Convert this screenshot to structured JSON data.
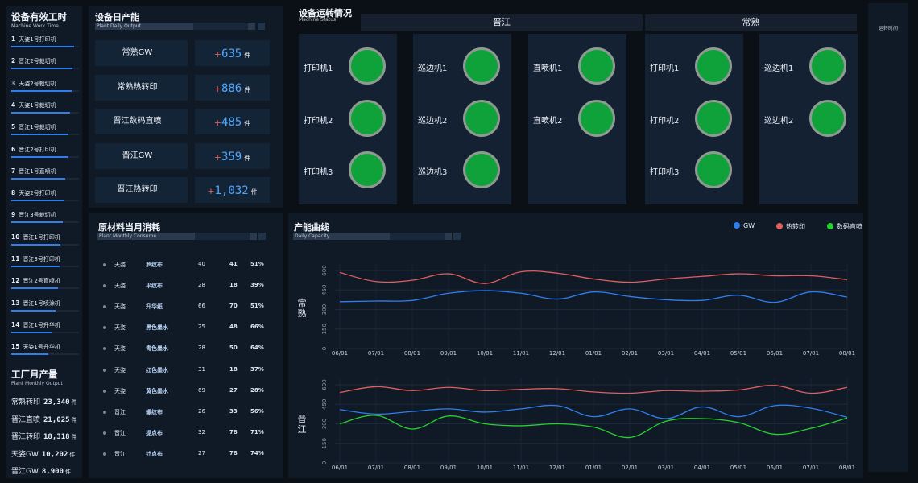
{
  "work_hours": {
    "title": "设备有效工时",
    "subtitle": "Machine Work Time",
    "items": [
      {
        "rank": "1",
        "label": "天姿1号打印机",
        "progress": 0.93
      },
      {
        "rank": "2",
        "label": "晋江2号裁切机",
        "progress": 0.91
      },
      {
        "rank": "3",
        "label": "天姿2号裁切机",
        "progress": 0.89
      },
      {
        "rank": "4",
        "label": "天姿1号裁切机",
        "progress": 0.87
      },
      {
        "rank": "5",
        "label": "晋江1号裁切机",
        "progress": 0.85
      },
      {
        "rank": "6",
        "label": "晋江2号打印机",
        "progress": 0.83
      },
      {
        "rank": "7",
        "label": "晋江1号直喷机",
        "progress": 0.8
      },
      {
        "rank": "8",
        "label": "天姿2号打印机",
        "progress": 0.78
      },
      {
        "rank": "9",
        "label": "晋江3号裁切机",
        "progress": 0.76
      },
      {
        "rank": "10",
        "label": "晋江1号打印机",
        "progress": 0.73
      },
      {
        "rank": "11",
        "label": "晋江3号打印机",
        "progress": 0.71
      },
      {
        "rank": "12",
        "label": "晋江2号直喷机",
        "progress": 0.69
      },
      {
        "rank": "13",
        "label": "晋江1号喷涂机",
        "progress": 0.66
      },
      {
        "rank": "14",
        "label": "晋江1号升华机",
        "progress": 0.6
      },
      {
        "rank": "15",
        "label": "天姿1号升华机",
        "progress": 0.55
      }
    ]
  },
  "plant_output": {
    "title": "工厂月产量",
    "subtitle": "Plant Monthly Output",
    "rows": [
      {
        "name": "常熟转印",
        "value": "23,340",
        "unit": "件"
      },
      {
        "name": "晋江直喷",
        "value": "21,025",
        "unit": "件"
      },
      {
        "name": "晋江转印",
        "value": "18,318",
        "unit": "件"
      },
      {
        "name": "天姿GW",
        "value": "10,202",
        "unit": "件"
      },
      {
        "name": "晋江GW",
        "value": "8,900",
        "unit": "件"
      }
    ]
  },
  "daily_output": {
    "title": "设备日产能",
    "subtitle": "Plant Daily Output",
    "rows": [
      {
        "name": "常熟GW",
        "plus": "+",
        "value": "635",
        "unit": "件"
      },
      {
        "name": "常熟热转印",
        "plus": "+",
        "value": "886",
        "unit": "件"
      },
      {
        "name": "晋江数码直喷",
        "plus": "+",
        "value": "485",
        "unit": "件"
      },
      {
        "name": "晋江GW",
        "plus": "+",
        "value": "359",
        "unit": "件"
      },
      {
        "name": "晋江热转印",
        "plus": "+",
        "value": "1,032",
        "unit": "件"
      }
    ]
  },
  "machine_status": {
    "title": "设备运转情况",
    "subtitle": "Machine Status",
    "groups": [
      {
        "name": "晋江"
      },
      {
        "name": "常熟"
      }
    ],
    "status_color": "#0fa13a",
    "columns": [
      {
        "machines": [
          "打印机1",
          "打印机2",
          "打印机3"
        ]
      },
      {
        "machines": [
          "巡边机1",
          "巡边机2",
          "巡边机3"
        ]
      },
      {
        "machines": [
          "直喷机1",
          "直喷机2"
        ]
      },
      {
        "machines": [
          "打印机1",
          "打印机2",
          "打印机3"
        ]
      },
      {
        "machines": [
          "巡边机1",
          "巡边机2"
        ]
      }
    ]
  },
  "runtime": {
    "label": "运转时间"
  },
  "consume": {
    "title": "原材料当月消耗",
    "subtitle": "Plant Monthly Consume",
    "rows": [
      {
        "plant": "天姿",
        "material": "罗纹布",
        "a": "40",
        "b": "41",
        "pct": "51%"
      },
      {
        "plant": "天姿",
        "material": "平纹布",
        "a": "28",
        "b": "18",
        "pct": "39%"
      },
      {
        "plant": "天姿",
        "material": "升华纸",
        "a": "66",
        "b": "70",
        "pct": "51%"
      },
      {
        "plant": "天姿",
        "material": "黑色墨水",
        "a": "25",
        "b": "48",
        "pct": "66%"
      },
      {
        "plant": "天姿",
        "material": "青色墨水",
        "a": "28",
        "b": "50",
        "pct": "64%"
      },
      {
        "plant": "天姿",
        "material": "红色墨水",
        "a": "31",
        "b": "18",
        "pct": "37%"
      },
      {
        "plant": "天姿",
        "material": "黄色墨水",
        "a": "69",
        "b": "27",
        "pct": "28%"
      },
      {
        "plant": "晋江",
        "material": "螺纹布",
        "a": "26",
        "b": "33",
        "pct": "56%"
      },
      {
        "plant": "晋江",
        "material": "提点布",
        "a": "32",
        "b": "78",
        "pct": "71%"
      },
      {
        "plant": "晋江",
        "material": "针点布",
        "a": "27",
        "b": "78",
        "pct": "74%"
      }
    ]
  },
  "capacity": {
    "title": "产能曲线",
    "subtitle": "Daily Capacity",
    "legend": [
      {
        "name": "GW",
        "color": "#2f7ef0"
      },
      {
        "name": "热转印",
        "color": "#e35d5d"
      },
      {
        "name": "数码直喷",
        "color": "#27d12e"
      }
    ]
  },
  "chart_data": [
    {
      "type": "line",
      "label": "常熟",
      "x": [
        "06/01",
        "07/01",
        "08/01",
        "09/01",
        "10/01",
        "11/01",
        "12/01",
        "01/01",
        "02/01",
        "03/01",
        "04/01",
        "05/01",
        "06/01",
        "07/01",
        "08/01"
      ],
      "ylim": [
        0,
        600
      ],
      "yticks": [
        "0",
        "150",
        "300",
        "450",
        "600"
      ],
      "series": [
        {
          "name": "GW",
          "color": "#2f7ef0",
          "values": [
            360,
            365,
            370,
            425,
            445,
            425,
            380,
            435,
            400,
            375,
            370,
            410,
            355,
            435,
            395
          ]
        },
        {
          "name": "热转印",
          "color": "#e35d5d",
          "values": [
            585,
            515,
            525,
            575,
            500,
            590,
            580,
            535,
            510,
            535,
            555,
            575,
            560,
            560,
            530
          ]
        }
      ]
    },
    {
      "type": "line",
      "label": "晋江",
      "x": [
        "06/01",
        "07/01",
        "08/01",
        "09/01",
        "10/01",
        "11/01",
        "12/01",
        "01/01",
        "02/01",
        "03/01",
        "04/01",
        "05/01",
        "06/01",
        "07/01",
        "08/01"
      ],
      "ylim": [
        0,
        600
      ],
      "yticks": [
        "0",
        "150",
        "300",
        "450",
        "600"
      ],
      "series": [
        {
          "name": "GW",
          "color": "#2f7ef0",
          "values": [
            410,
            375,
            395,
            415,
            390,
            415,
            440,
            355,
            415,
            340,
            430,
            355,
            440,
            420,
            350
          ]
        },
        {
          "name": "热转印",
          "color": "#e35d5d",
          "values": [
            540,
            585,
            555,
            580,
            555,
            565,
            570,
            545,
            535,
            555,
            550,
            560,
            595,
            535,
            580
          ]
        },
        {
          "name": "数码直喷",
          "color": "#27d12e",
          "values": [
            300,
            365,
            260,
            360,
            300,
            285,
            300,
            275,
            195,
            320,
            340,
            310,
            220,
            265,
            345
          ]
        }
      ]
    }
  ]
}
